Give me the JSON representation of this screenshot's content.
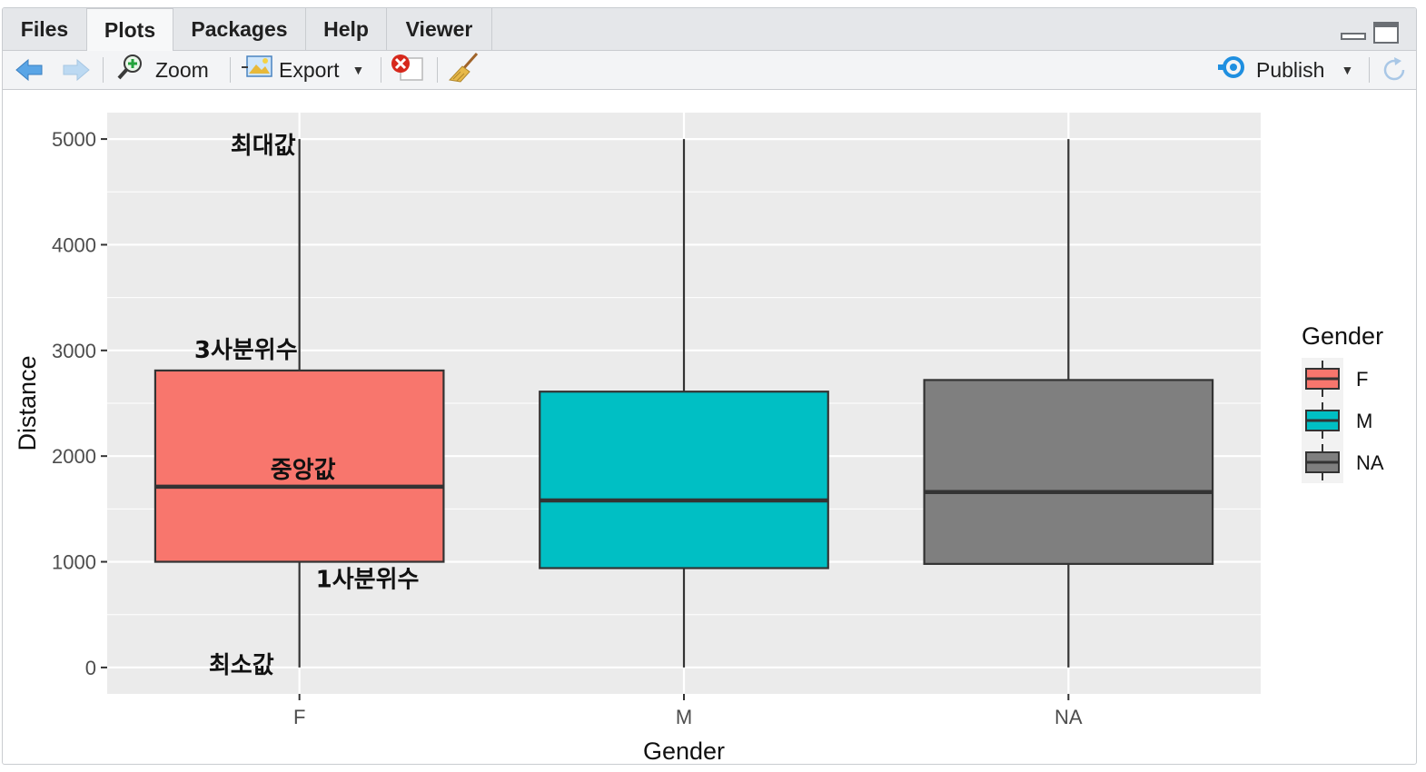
{
  "tabs": [
    {
      "label": "Files",
      "active": false
    },
    {
      "label": "Plots",
      "active": true
    },
    {
      "label": "Packages",
      "active": false
    },
    {
      "label": "Help",
      "active": false
    },
    {
      "label": "Viewer",
      "active": false
    }
  ],
  "toolbar": {
    "zoom_label": "Zoom",
    "export_label": "Export",
    "publish_label": "Publish"
  },
  "colors": {
    "panel_bg": "#EBEBEB",
    "grid": "#FFFFFF",
    "accent_blue": "#1f8fe0"
  },
  "chart_data": {
    "type": "box",
    "xlabel": "Gender",
    "ylabel": "Distance",
    "ylim": [
      -250,
      5250
    ],
    "yticks": [
      0,
      1000,
      2000,
      3000,
      4000,
      5000
    ],
    "categories": [
      "F",
      "M",
      "NA"
    ],
    "boxes": [
      {
        "category": "F",
        "min": 0,
        "q1": 1000,
        "median": 1710,
        "q3": 2810,
        "max": 5000,
        "fill": "#F8766D"
      },
      {
        "category": "M",
        "min": 0,
        "q1": 940,
        "median": 1580,
        "q3": 2610,
        "max": 5000,
        "fill": "#00BFC4"
      },
      {
        "category": "NA",
        "min": 0,
        "q1": 980,
        "median": 1660,
        "q3": 2720,
        "max": 5000,
        "fill": "#7F7F7F"
      }
    ],
    "legend": {
      "title": "Gender",
      "position": "right",
      "items": [
        {
          "label": "F",
          "color": "#F8766D"
        },
        {
          "label": "M",
          "color": "#00BFC4"
        },
        {
          "label": "NA",
          "color": "#7F7F7F"
        }
      ]
    },
    "annotations": [
      {
        "text": "최대값",
        "target": "max"
      },
      {
        "text": "3사분위수",
        "target": "q3"
      },
      {
        "text": "중앙값",
        "target": "median"
      },
      {
        "text": "1사분위수",
        "target": "q1"
      },
      {
        "text": "최소값",
        "target": "min"
      }
    ],
    "grid": true
  }
}
